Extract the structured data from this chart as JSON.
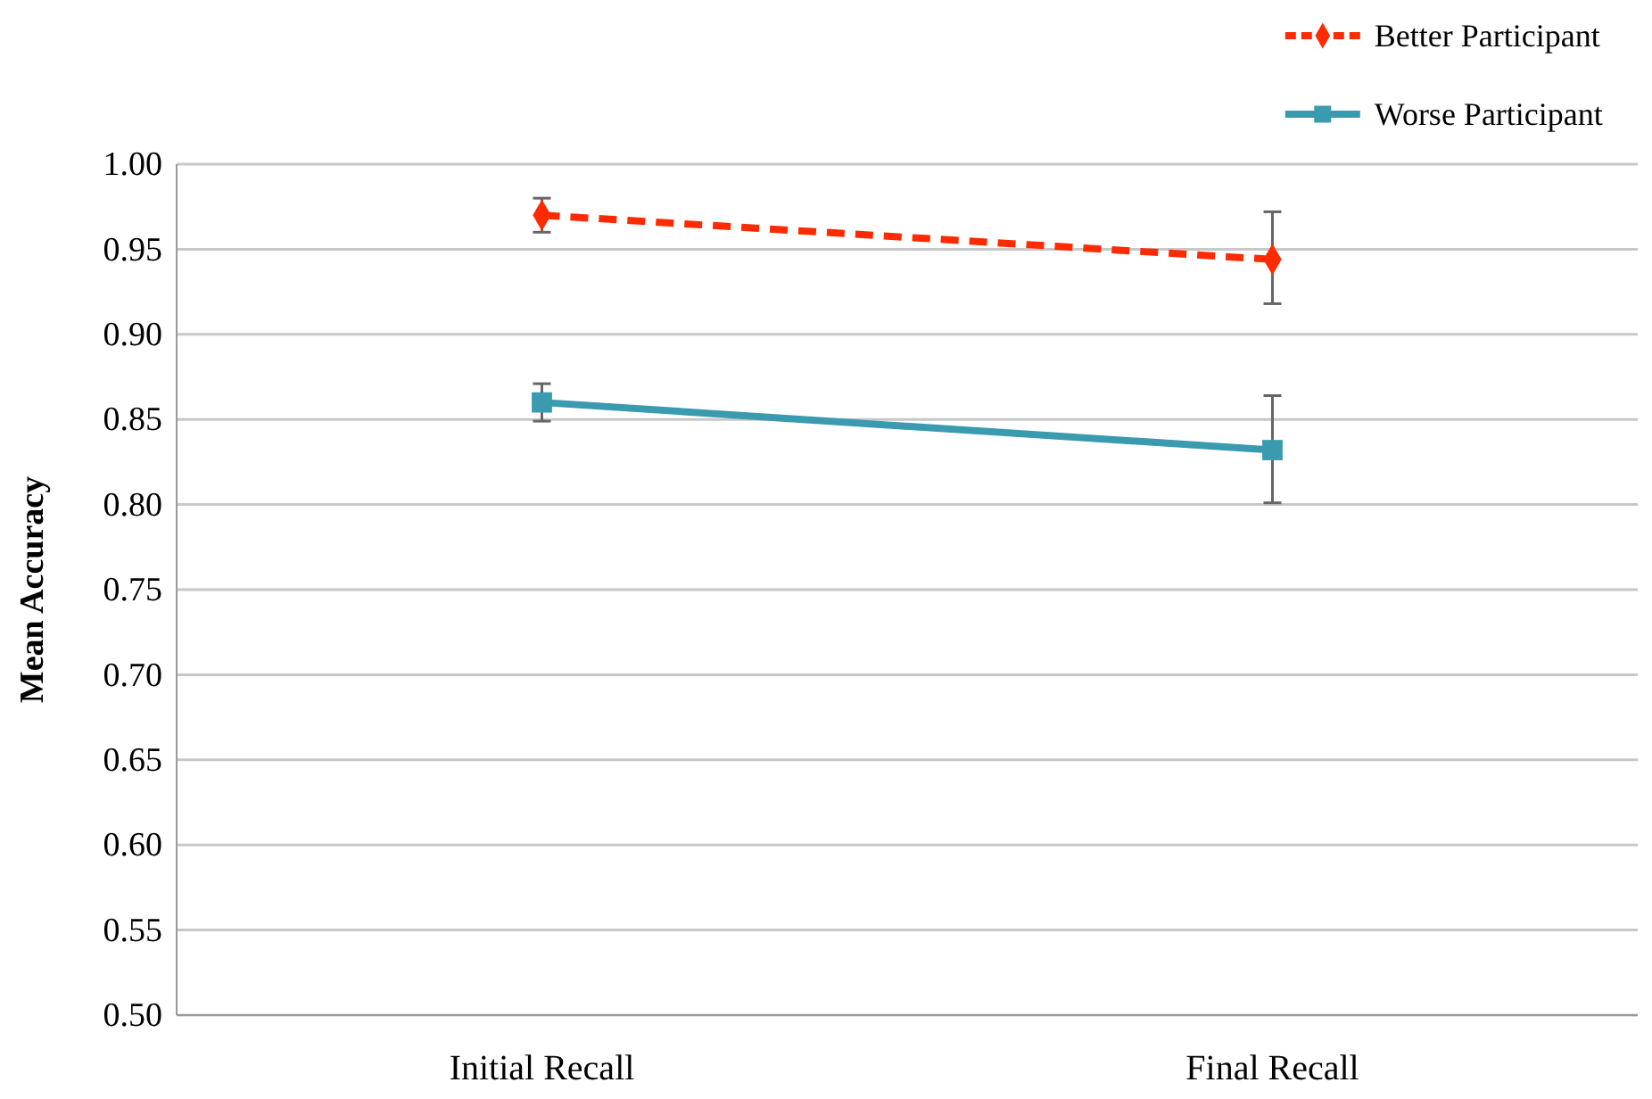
{
  "chart_data": {
    "type": "line",
    "ylabel": "Mean Accuracy",
    "categories": [
      "Initial Recall",
      "Final Recall"
    ],
    "series": [
      {
        "name": "Better Participant",
        "color": "#fe2a00",
        "values": [
          0.97,
          0.944
        ],
        "errors": [
          [
            0.96,
            0.98
          ],
          [
            0.918,
            0.972
          ]
        ],
        "marker": "diamond",
        "line_style": "dashed"
      },
      {
        "name": "Worse Participant",
        "color": "#3a9ab0",
        "values": [
          0.86,
          0.832
        ],
        "errors": [
          [
            0.849,
            0.871
          ],
          [
            0.801,
            0.864
          ]
        ],
        "marker": "square",
        "line_style": "solid"
      }
    ],
    "ylim": [
      0.5,
      1.0
    ],
    "yticks": [
      {
        "value": 0.5,
        "label": "0.50"
      },
      {
        "value": 0.55,
        "label": "0.55"
      },
      {
        "value": 0.6,
        "label": "0.60"
      },
      {
        "value": 0.65,
        "label": "0.65"
      },
      {
        "value": 0.7,
        "label": "0.70"
      },
      {
        "value": 0.75,
        "label": "0.75"
      },
      {
        "value": 0.8,
        "label": "0.80"
      },
      {
        "value": 0.85,
        "label": "0.85"
      },
      {
        "value": 0.9,
        "label": "0.90"
      },
      {
        "value": 0.95,
        "label": "0.95"
      },
      {
        "value": 1.0,
        "label": "1.00"
      }
    ],
    "grid": "y",
    "legend": "top right"
  }
}
